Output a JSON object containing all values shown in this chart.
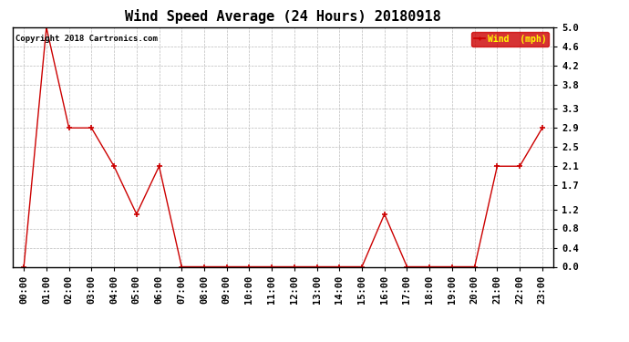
{
  "title": "Wind Speed Average (24 Hours) 20180918",
  "copyright": "Copyright 2018 Cartronics.com",
  "legend_label": "Wind  (mph)",
  "x_labels": [
    "00:00",
    "01:00",
    "02:00",
    "03:00",
    "04:00",
    "05:00",
    "06:00",
    "07:00",
    "08:00",
    "09:00",
    "10:00",
    "11:00",
    "12:00",
    "13:00",
    "14:00",
    "15:00",
    "16:00",
    "17:00",
    "18:00",
    "19:00",
    "20:00",
    "21:00",
    "22:00",
    "23:00"
  ],
  "y_values": [
    0.0,
    5.0,
    2.9,
    2.9,
    2.1,
    1.1,
    2.1,
    0.0,
    0.0,
    0.0,
    0.0,
    0.0,
    0.0,
    0.0,
    0.0,
    0.0,
    1.1,
    0.0,
    0.0,
    0.0,
    0.0,
    2.1,
    2.1,
    2.9
  ],
  "ylim": [
    0.0,
    5.0
  ],
  "y_ticks": [
    0.0,
    0.4,
    0.8,
    1.2,
    1.7,
    2.1,
    2.5,
    2.9,
    3.3,
    3.8,
    4.2,
    4.6,
    5.0
  ],
  "line_color": "#cc0000",
  "marker": "+",
  "marker_size": 4,
  "marker_edge_width": 1.2,
  "line_width": 1.0,
  "background_color": "#ffffff",
  "plot_bg_color": "#ffffff",
  "grid_color": "#bbbbbb",
  "title_fontsize": 11,
  "tick_fontsize": 7.5,
  "copyright_fontsize": 6.5,
  "legend_bg": "#cc0000",
  "legend_text_color": "#ffff00",
  "legend_fontsize": 7,
  "border_color": "#000000"
}
